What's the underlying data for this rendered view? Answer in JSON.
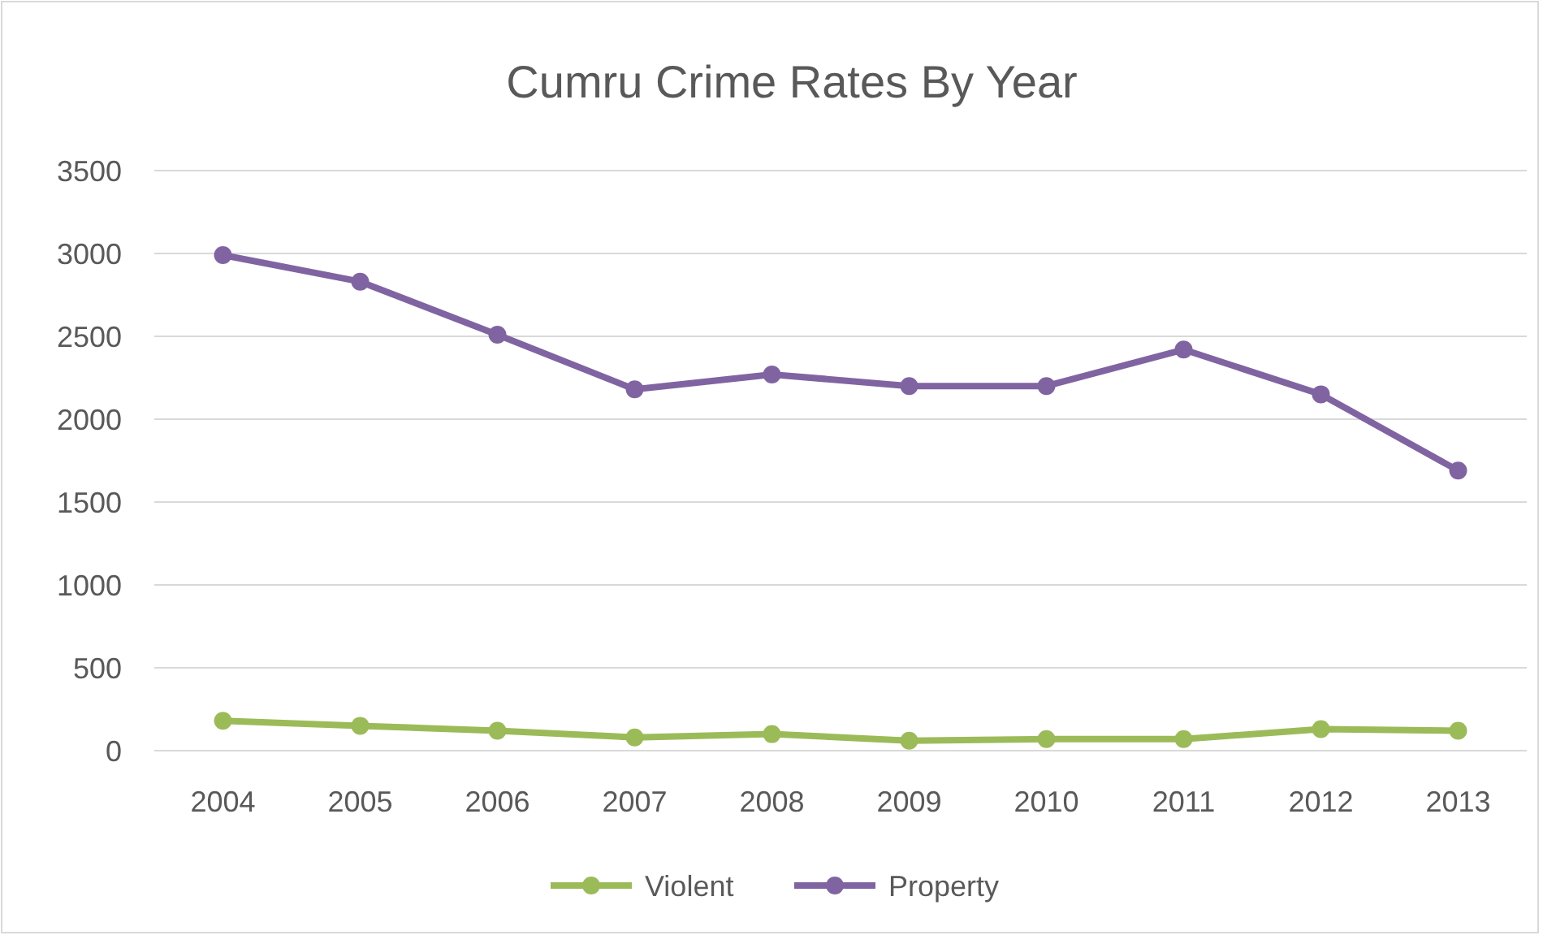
{
  "chart_data": {
    "type": "line",
    "title": "Cumru Crime Rates By Year",
    "categories": [
      "2004",
      "2005",
      "2006",
      "2007",
      "2008",
      "2009",
      "2010",
      "2011",
      "2012",
      "2013"
    ],
    "series": [
      {
        "name": "Violent",
        "color": "#9bbb59",
        "values": [
          180,
          150,
          120,
          80,
          100,
          60,
          70,
          70,
          130,
          120
        ]
      },
      {
        "name": "Property",
        "color": "#8064a2",
        "values": [
          2990,
          2830,
          2510,
          2180,
          2270,
          2200,
          2200,
          2420,
          2150,
          1690
        ]
      }
    ],
    "ylim": [
      0,
      3500
    ],
    "yticks": [
      0,
      500,
      1000,
      1500,
      2000,
      2500,
      3000,
      3500
    ],
    "grid": "y",
    "legend": "bottom",
    "marker": "circle",
    "line_style": "solid"
  }
}
